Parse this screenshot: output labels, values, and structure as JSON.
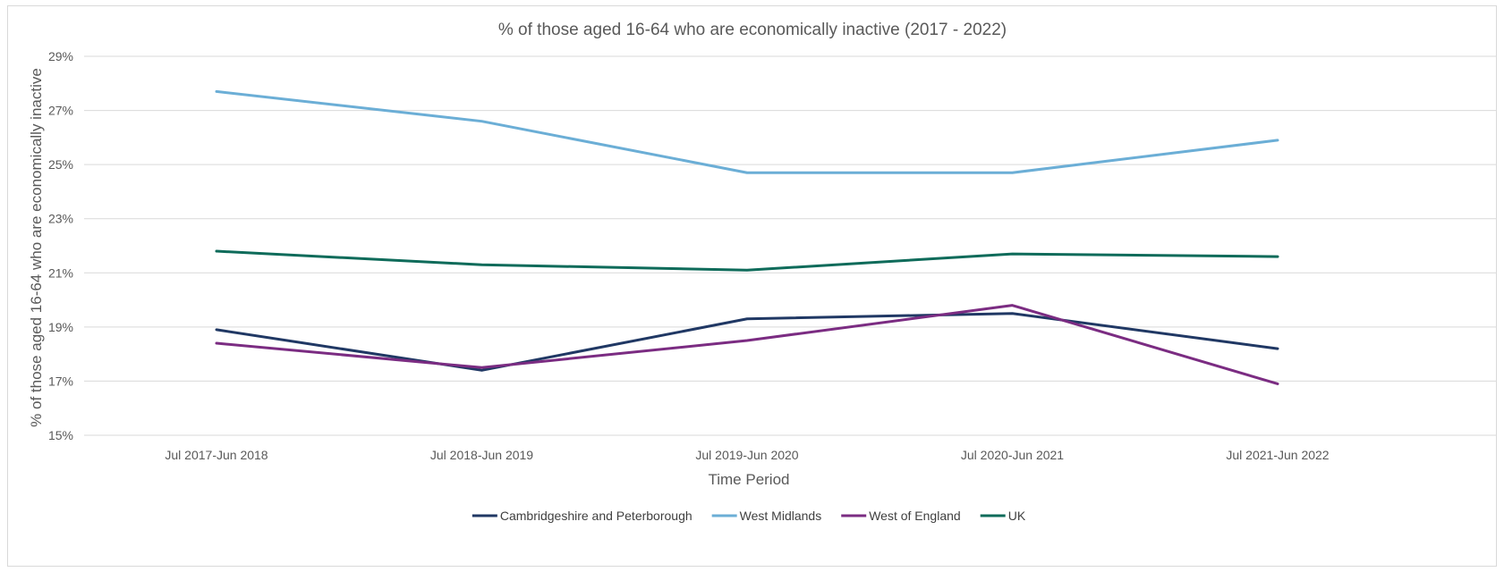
{
  "chart_data": {
    "type": "line",
    "title": "% of those aged 16-64 who are economically inactive (2017 - 2022)",
    "xlabel": "Time Period",
    "ylabel": "% of those aged 16-64 who are economically inactive",
    "categories": [
      "Jul 2017-Jun 2018",
      "Jul 2018-Jun 2019",
      "Jul 2019-Jun 2020",
      "Jul 2020-Jun 2021",
      "Jul 2021-Jun 2022"
    ],
    "ylim": [
      15,
      29
    ],
    "yticks": [
      15,
      17,
      19,
      21,
      23,
      25,
      27,
      29
    ],
    "ytick_labels": [
      "15%",
      "17%",
      "19%",
      "21%",
      "23%",
      "25%",
      "27%",
      "29%"
    ],
    "grid": true,
    "legend_position": "bottom",
    "series": [
      {
        "name": "Cambridgeshire and Peterborough",
        "color": "#203864",
        "values": [
          18.9,
          17.4,
          19.3,
          19.5,
          18.2
        ]
      },
      {
        "name": "West Midlands",
        "color": "#6baed6",
        "values": [
          27.7,
          26.6,
          24.7,
          24.7,
          25.9
        ]
      },
      {
        "name": "West of England",
        "color": "#7b2c82",
        "values": [
          18.4,
          17.5,
          18.5,
          19.8,
          16.9
        ]
      },
      {
        "name": "UK",
        "color": "#0e6b5a",
        "values": [
          21.8,
          21.3,
          21.1,
          21.7,
          21.6
        ]
      }
    ]
  }
}
